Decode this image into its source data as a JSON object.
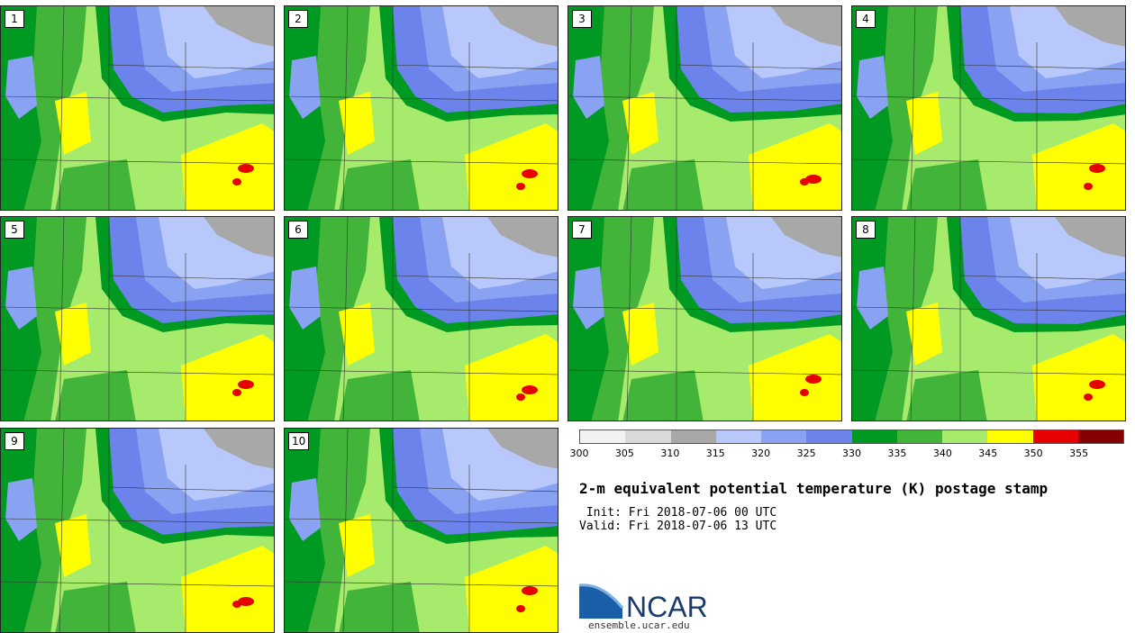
{
  "panels": [
    {
      "label": "1",
      "blobs": [
        [
          270,
          180
        ],
        [
          275,
          192
        ]
      ]
    },
    {
      "label": "2",
      "blobs": [
        [
          595,
          175
        ],
        [
          588,
          192
        ]
      ]
    },
    {
      "label": "3",
      "blobs": [
        [
          905,
          185
        ],
        [
          895,
          195
        ]
      ]
    },
    {
      "label": "4",
      "blobs": [
        [
          1220,
          172
        ],
        [
          1212,
          185
        ]
      ]
    },
    {
      "label": "5",
      "blobs": [
        [
          278,
          410
        ],
        [
          272,
          425
        ]
      ]
    },
    {
      "label": "6",
      "blobs": [
        [
          590,
          420
        ],
        [
          580,
          430
        ]
      ]
    },
    {
      "label": "7",
      "blobs": [
        [
          905,
          410
        ],
        [
          895,
          425
        ]
      ]
    },
    {
      "label": "8",
      "blobs": [
        [
          1220,
          410
        ],
        [
          1218,
          428
        ]
      ]
    },
    {
      "label": "9",
      "blobs": [
        [
          275,
          655
        ],
        [
          268,
          660
        ]
      ]
    },
    {
      "label": "10",
      "blobs": [
        [
          598,
          650
        ],
        [
          590,
          662
        ]
      ]
    }
  ],
  "legend": {
    "colors": [
      "#f2f2f2",
      "#d9d9d9",
      "#a8a8a8",
      "#b8c8fa",
      "#8aa2f2",
      "#6b83ea",
      "#009a22",
      "#42b43a",
      "#a6eb6c",
      "#ffff00",
      "#e60000",
      "#850000"
    ],
    "ticks": [
      "300",
      "305",
      "310",
      "315",
      "320",
      "325",
      "330",
      "335",
      "340",
      "345",
      "350",
      "355"
    ]
  },
  "title": "2-m equivalent potential temperature (K) postage stamp",
  "init": " Init: Fri 2018-07-06 00 UTC",
  "valid": "Valid: Fri 2018-07-06 13 UTC",
  "logo_text": "NCAR",
  "logo_url": "ensemble.ucar.edu"
}
